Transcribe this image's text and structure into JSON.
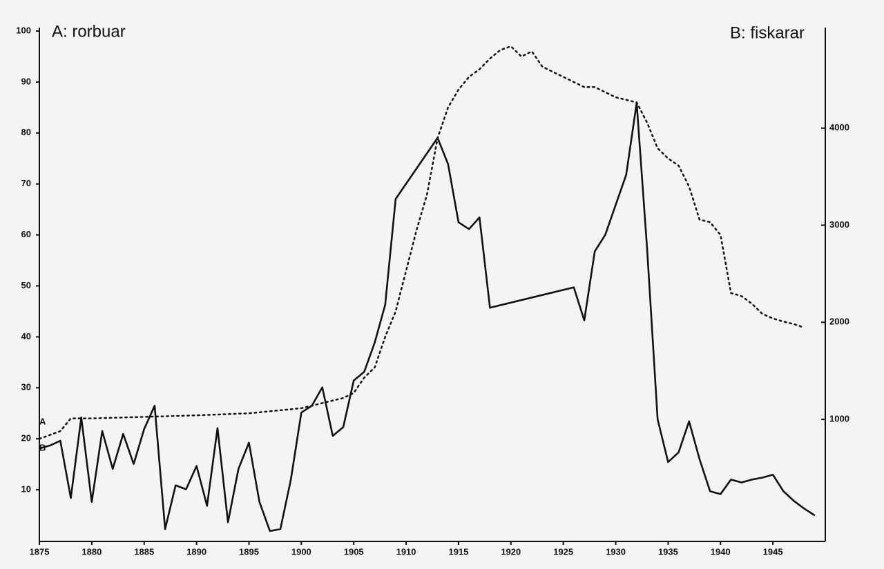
{
  "chart_data": {
    "type": "line",
    "xlim": [
      1875,
      1950
    ],
    "xticks": [
      1875,
      1880,
      1885,
      1890,
      1895,
      1900,
      1905,
      1910,
      1915,
      1920,
      1925,
      1930,
      1935,
      1940,
      1945
    ],
    "ylim": [
      0,
      100
    ],
    "yticks": [
      10,
      20,
      30,
      40,
      50,
      60,
      70,
      80,
      90,
      100
    ],
    "y2lim": [
      -250,
      5000
    ],
    "y2ticks": [
      1000,
      2000,
      3000,
      4000
    ],
    "series": [
      {
        "name": "A: rorbuar",
        "label": "A",
        "color": "#111111",
        "dash": "dotted",
        "x": [
          1875,
          1877,
          1878,
          1880,
          1885,
          1890,
          1895,
          1900,
          1902,
          1904,
          1905,
          1906,
          1907,
          1908,
          1909,
          1910,
          1911,
          1912,
          1913,
          1914,
          1915,
          1916,
          1917,
          1918,
          1919,
          1920,
          1921,
          1922,
          1923,
          1924,
          1925,
          1926,
          1927,
          1928,
          1929,
          1930,
          1931,
          1932,
          1933,
          1934,
          1935,
          1936,
          1937,
          1938,
          1939,
          1940,
          1941,
          1942,
          1943,
          1944,
          1945,
          1946,
          1947,
          1948
        ],
        "values": [
          20,
          21.5,
          24,
          24,
          24.3,
          24.6,
          25,
          26,
          27,
          28,
          29,
          32,
          34,
          40,
          45,
          53,
          61,
          68,
          79,
          85,
          88.5,
          91,
          92.5,
          94.6,
          96.3,
          97,
          95,
          96,
          93,
          92,
          91,
          90,
          89,
          89,
          88,
          87,
          86.5,
          86,
          82,
          77,
          75,
          73.6,
          69.5,
          63,
          62.5,
          60,
          48.6,
          48,
          46.5,
          44.5,
          43.6,
          43,
          42.5,
          41.8
        ]
      },
      {
        "name": "B: fiskarar",
        "label": "B",
        "color": "#111111",
        "dash": "solid",
        "axis": "y2",
        "x": [
          1875,
          1876,
          1877,
          1878,
          1879,
          1880,
          1881,
          1882,
          1883,
          1884,
          1885,
          1886,
          1887,
          1888,
          1889,
          1890,
          1891,
          1892,
          1893,
          1894,
          1895,
          1896,
          1897,
          1898,
          1899,
          1900,
          1901,
          1902,
          1903,
          1904,
          1905,
          1906,
          1907,
          1908,
          1909,
          1913,
          1914,
          1915,
          1916,
          1917,
          1918,
          1926,
          1927,
          1928,
          1929,
          1931,
          1932,
          1933,
          1934,
          1935,
          1936,
          1937,
          1938,
          1939,
          1940,
          1941,
          1942,
          1943,
          1944,
          1945,
          1946,
          1947,
          1948,
          1949
        ],
        "values": [
          700,
          730,
          780,
          190,
          1020,
          150,
          880,
          490,
          850,
          540,
          900,
          1140,
          -130,
          320,
          280,
          520,
          110,
          910,
          -60,
          490,
          760,
          150,
          -150,
          -130,
          380,
          1070,
          1140,
          1330,
          830,
          920,
          1400,
          1490,
          1790,
          2180,
          3270,
          3900,
          3630,
          3030,
          2960,
          3080,
          2150,
          2360,
          2020,
          2730,
          2900,
          3520,
          4260,
          2750,
          1000,
          560,
          660,
          980,
          590,
          260,
          230,
          380,
          350,
          380,
          400,
          430,
          260,
          160,
          80,
          10
        ]
      }
    ]
  }
}
